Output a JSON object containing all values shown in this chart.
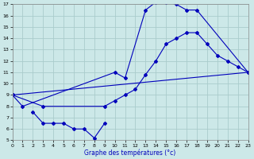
{
  "xlabel": "Graphe des températures (°c)",
  "bg_color": "#cce8e8",
  "grid_color": "#aacccc",
  "line_color": "#0000bb",
  "ylim": [
    5,
    17
  ],
  "xlim": [
    0,
    23
  ],
  "yticks": [
    5,
    6,
    7,
    8,
    9,
    10,
    11,
    12,
    13,
    14,
    15,
    16,
    17
  ],
  "xticks": [
    0,
    1,
    2,
    3,
    4,
    5,
    6,
    7,
    8,
    9,
    10,
    11,
    12,
    13,
    14,
    15,
    16,
    17,
    18,
    19,
    20,
    21,
    22,
    23
  ],
  "series": [
    {
      "x": [
        0,
        1,
        10,
        11,
        13,
        14,
        15,
        16,
        17,
        18,
        23
      ],
      "y": [
        9,
        8,
        11,
        10.5,
        16.5,
        17.2,
        17.2,
        17,
        16.5,
        16.5,
        11
      ]
    },
    {
      "x": [
        0,
        3,
        9,
        10,
        11,
        12,
        13,
        14,
        15,
        16,
        17,
        18,
        19,
        20,
        21,
        22,
        23
      ],
      "y": [
        9,
        8,
        8,
        8.5,
        9,
        9.5,
        10.8,
        12,
        13.5,
        14,
        14.5,
        14.5,
        13.5,
        12.5,
        12,
        11.5,
        11
      ]
    },
    {
      "x": [
        2,
        3,
        4,
        5,
        6,
        7,
        8,
        9
      ],
      "y": [
        7.5,
        6.5,
        6.5,
        6.5,
        6,
        6,
        5.2,
        6.5
      ]
    },
    {
      "x": [
        0,
        23
      ],
      "y": [
        9,
        11
      ]
    }
  ]
}
